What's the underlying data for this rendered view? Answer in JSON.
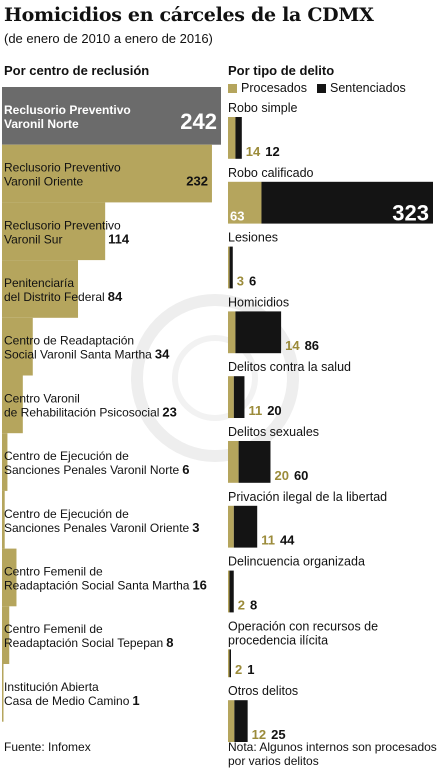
{
  "title": "Homicidios en cárceles de la CDMX",
  "subtitle": "(de enero de 2010 a enero de 2016)",
  "colors": {
    "gold": "#b5a55d",
    "dark_gold": "#9b8b3a",
    "black": "#141414",
    "gray": "#6b6b6b"
  },
  "chart_data": [
    {
      "type": "bar",
      "title": "Por centro de reclusión",
      "categories": [
        [
          "Reclusorio Preventivo",
          "Varonil Norte"
        ],
        [
          "Reclusorio Preventivo",
          "Varonil Oriente"
        ],
        [
          "Reclusorio Preventivo",
          "Varonil Sur"
        ],
        [
          "Penitenciaría",
          "del Distrito Federal"
        ],
        [
          "Centro de Readaptación",
          "Social Varonil Santa Martha"
        ],
        [
          "Centro Varonil",
          "de Rehabilitación Psicosocial"
        ],
        [
          "Centro de Ejecución de",
          "Sanciones Penales Varonil Norte"
        ],
        [
          "Centro de Ejecución de",
          "Sanciones Penales Varonil Oriente"
        ],
        [
          "Centro Femenil de",
          "Readaptación Social Santa Martha"
        ],
        [
          "Centro Femenil de",
          "Readaptación Social Tepepan"
        ],
        [
          "Institución Abierta",
          "Casa de Medio Camino"
        ]
      ],
      "values": [
        242,
        232,
        114,
        84,
        34,
        23,
        6,
        3,
        16,
        8,
        1
      ]
    },
    {
      "type": "bar",
      "stacked": true,
      "title": "Por tipo de delito",
      "series_names": [
        "Procesados",
        "Sentenciados"
      ],
      "categories": [
        [
          "Robo simple"
        ],
        [
          "Robo calificado"
        ],
        [
          "Lesiones"
        ],
        [
          "Homicidios"
        ],
        [
          "Delitos contra la salud"
        ],
        [
          "Delitos sexuales"
        ],
        [
          "Privación ilegal de la libertad"
        ],
        [
          "Delincuencia organizada"
        ],
        [
          "Operación con recursos de",
          "procedencia ilícita"
        ],
        [
          "Otros delitos"
        ]
      ],
      "series": [
        {
          "name": "Procesados",
          "values": [
            14,
            63,
            3,
            14,
            11,
            20,
            11,
            2,
            2,
            12
          ]
        },
        {
          "name": "Sentenciados",
          "values": [
            12,
            323,
            6,
            86,
            20,
            60,
            44,
            8,
            1,
            25
          ]
        }
      ]
    }
  ],
  "footer": {
    "source": "Fuente: Infomex",
    "note": [
      "Nota: Algunos internos son procesados",
      "por varios delitos"
    ]
  }
}
